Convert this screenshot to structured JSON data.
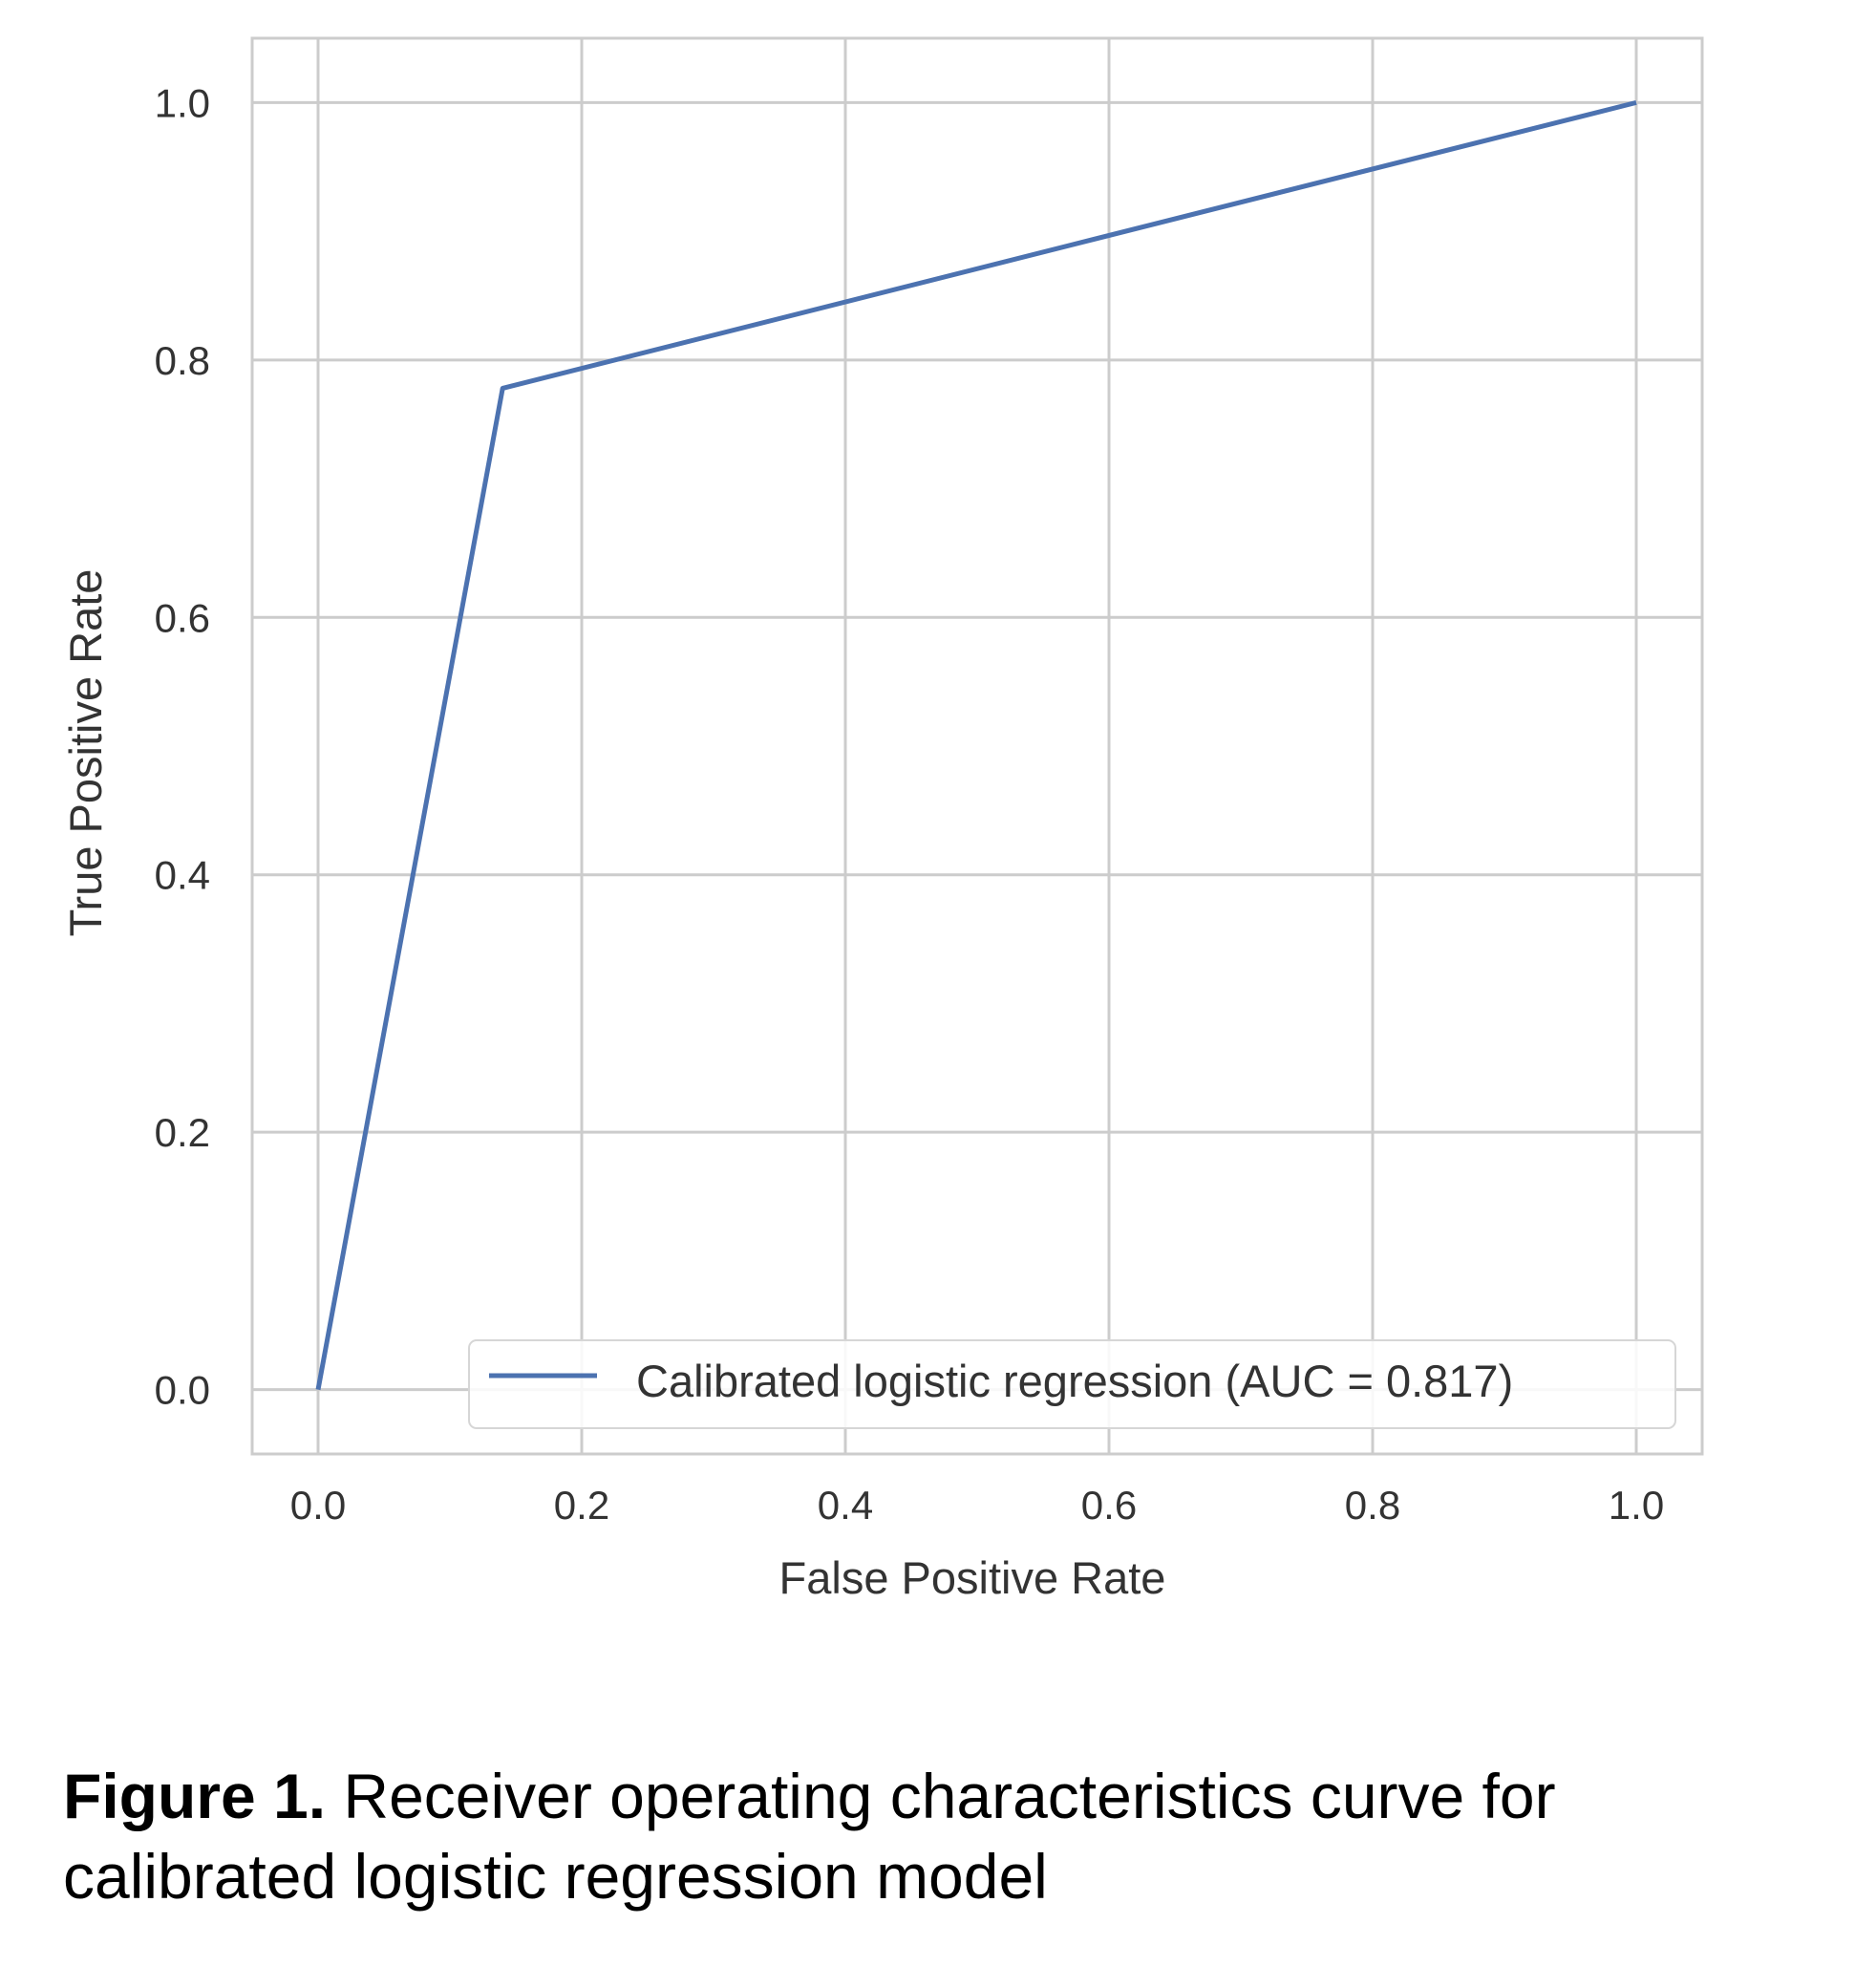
{
  "chart_data": {
    "type": "line",
    "title": "",
    "xlabel": "False Positive Rate",
    "ylabel": "True Positive Rate",
    "xlim": [
      -0.05,
      1.05
    ],
    "ylim": [
      -0.05,
      1.05
    ],
    "xticks": [
      "0.0",
      "0.2",
      "0.4",
      "0.6",
      "0.8",
      "1.0"
    ],
    "yticks": [
      "0.0",
      "0.2",
      "0.4",
      "0.6",
      "0.8",
      "1.0"
    ],
    "grid": true,
    "legend_position": "lower-right",
    "series": [
      {
        "name": "Calibrated logistic regression (AUC = 0.817)",
        "color": "#4c72b0",
        "x": [
          0.0,
          0.14,
          1.0
        ],
        "y": [
          0.0,
          0.778,
          1.0
        ]
      }
    ]
  },
  "caption": {
    "label": "Figure 1.",
    "text": " Receiver operating characteristics curve for calibrated logistic regression model"
  }
}
